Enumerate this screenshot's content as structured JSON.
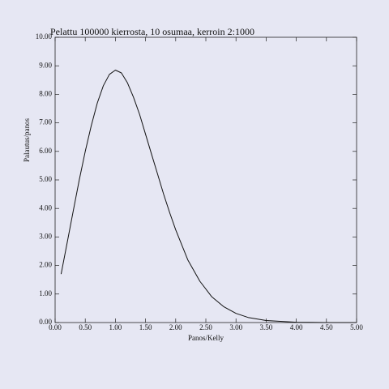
{
  "chart_data": {
    "type": "line",
    "title": "Pelattu 100000 kierrosta, 10 osumaa, kerroin 2:1000",
    "x_label": "Panos/Kelly",
    "y_label": "Palautus/panos",
    "x": [
      0.1,
      0.2,
      0.3,
      0.4,
      0.5,
      0.6,
      0.7,
      0.8,
      0.9,
      1.0,
      1.1,
      1.2,
      1.3,
      1.4,
      1.5,
      1.6,
      1.7,
      1.8,
      1.9,
      2.0,
      2.2,
      2.4,
      2.6,
      2.8,
      3.0,
      3.2,
      3.5,
      4.0,
      4.5,
      5.0
    ],
    "series": [
      {
        "name": "Palautus/panos",
        "color": "#111111",
        "values": [
          1.7,
          2.8,
          3.9,
          5.0,
          6.0,
          6.9,
          7.7,
          8.3,
          8.7,
          8.85,
          8.75,
          8.4,
          7.9,
          7.3,
          6.6,
          5.9,
          5.2,
          4.5,
          3.85,
          3.25,
          2.2,
          1.45,
          0.9,
          0.55,
          0.32,
          0.18,
          0.07,
          0.01,
          0.0,
          0.0
        ]
      }
    ],
    "xlim": [
      0,
      5
    ],
    "xticks": [
      {
        "value": 0,
        "label": "0.00"
      },
      {
        "value": 0.5,
        "label": "0.50"
      },
      {
        "value": 1,
        "label": "1.00"
      },
      {
        "value": 1.5,
        "label": "1.50"
      },
      {
        "value": 2,
        "label": "2.00"
      },
      {
        "value": 2.5,
        "label": "2.50"
      },
      {
        "value": 3,
        "label": "3.00"
      },
      {
        "value": 3.5,
        "label": "3.50"
      },
      {
        "value": 4,
        "label": "4.00"
      },
      {
        "value": 4.5,
        "label": "4.50"
      },
      {
        "value": 5,
        "label": "5.00"
      }
    ],
    "ylim": [
      0,
      10
    ],
    "yticks": [
      {
        "value": 0,
        "label": "0.00"
      },
      {
        "value": 1,
        "label": "1.00"
      },
      {
        "value": 2,
        "label": "2.00"
      },
      {
        "value": 3,
        "label": "3.00"
      },
      {
        "value": 4,
        "label": "4.00"
      },
      {
        "value": 5,
        "label": "5.00"
      },
      {
        "value": 6,
        "label": "6.00"
      },
      {
        "value": 7,
        "label": "7.00"
      },
      {
        "value": 8,
        "label": "8.00"
      },
      {
        "value": 9,
        "label": "9.00"
      },
      {
        "value": 10,
        "label": "10.00"
      }
    ],
    "grid": false
  }
}
